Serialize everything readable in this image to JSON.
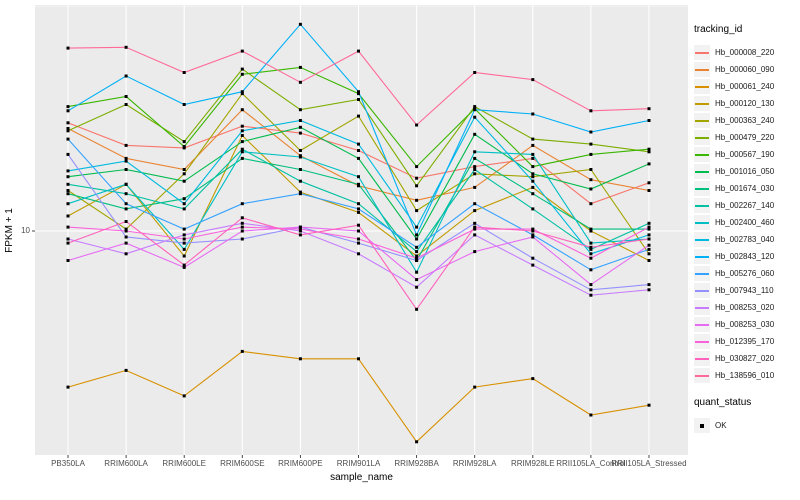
{
  "figure": {
    "y_axis": {
      "title": "FPKM + 1",
      "tick_label": "10"
    },
    "x_axis": {
      "title": "sample_name"
    },
    "legend": {
      "tracking_title": "tracking_id",
      "quant_title": "quant_status",
      "quant_items": [
        {
          "label": "OK",
          "marker": "black-square"
        }
      ]
    },
    "colors": {
      "panel_bg": "#EBEBEB",
      "grid": "#FFFFFF",
      "point": "#000000",
      "axis_text": "#4d4d4d"
    }
  },
  "chart_data": {
    "type": "line",
    "title": "",
    "xlabel": "sample_name",
    "ylabel": "FPKM + 1",
    "y_scale": "log10",
    "ylim": [
      3.1,
      32
    ],
    "y_major_breaks": [
      10
    ],
    "y_minor_breaks": [
      31.6
    ],
    "grid": true,
    "legend_position": "right",
    "point_marker": {
      "shape": "square",
      "color": "#000000",
      "status_label": "OK"
    },
    "categories": [
      "PB350LA",
      "RRIM600LA",
      "RRIM600LE",
      "RRIM600SE",
      "RRIM600PE",
      "RRIM901LA",
      "RRIM928BA",
      "RRIM928LA",
      "RRIM928LE",
      "RRII105LA_Control",
      "RRII105LA_Stressed"
    ],
    "series": [
      {
        "name": "Hb_000008_220",
        "color": "#F8766D",
        "values": [
          17.4,
          15.5,
          15.3,
          17.1,
          16.5,
          15.1,
          13.1,
          13.9,
          14.5,
          11.5,
          12.8
        ]
      },
      {
        "name": "Hb_000060_090",
        "color": "#EA8331",
        "values": [
          16.9,
          14.5,
          13.7,
          18.6,
          14.7,
          12.6,
          11.7,
          12.5,
          15.5,
          13.0,
          12.3
        ]
      },
      {
        "name": "Hb_000061_240",
        "color": "#D89000",
        "values": [
          4.5,
          4.9,
          4.3,
          5.4,
          5.2,
          5.2,
          3.4,
          4.5,
          4.7,
          3.9,
          4.1
        ]
      },
      {
        "name": "Hb_000120_130",
        "color": "#C09B00",
        "values": [
          10.8,
          12.7,
          8.8,
          16.3,
          12.2,
          11.0,
          8.8,
          11.1,
          12.5,
          10.0,
          8.6
        ]
      },
      {
        "name": "Hb_000363_240",
        "color": "#A3A500",
        "values": [
          12.3,
          10.1,
          13.4,
          20.2,
          15.1,
          18.0,
          11.1,
          13.4,
          13.2,
          13.7,
          8.9
        ]
      },
      {
        "name": "Hb_000479_220",
        "color": "#7CAE00",
        "values": [
          16.7,
          19.1,
          15.8,
          22.9,
          18.6,
          19.6,
          12.6,
          18.9,
          16.0,
          15.6,
          15.0
        ]
      },
      {
        "name": "Hb_000567_190",
        "color": "#39B600",
        "values": [
          18.9,
          19.9,
          15.4,
          22.3,
          23.1,
          20.2,
          13.9,
          18.7,
          13.9,
          14.8,
          15.2
        ]
      },
      {
        "name": "Hb_001016_050",
        "color": "#00BB4E",
        "values": [
          13.2,
          13.7,
          12.9,
          15.8,
          17.0,
          14.5,
          9.6,
          16.4,
          13.4,
          12.4,
          14.1
        ]
      },
      {
        "name": "Hb_001674_030",
        "color": "#00BF7D",
        "values": [
          12.1,
          11.2,
          11.8,
          14.5,
          13.7,
          12.7,
          8.6,
          14.5,
          12.1,
          10.1,
          10.1
        ]
      },
      {
        "name": "Hb_002267_140",
        "color": "#00C1A3",
        "values": [
          12.7,
          12.1,
          11.2,
          15.2,
          12.9,
          11.5,
          9.0,
          13.7,
          11.2,
          9.1,
          10.4
        ]
      },
      {
        "name": "Hb_002400_460",
        "color": "#00BFC4",
        "values": [
          11.5,
          12.7,
          9.1,
          15.0,
          14.6,
          13.2,
          8.1,
          15.0,
          14.8,
          9.4,
          9.6
        ]
      },
      {
        "name": "Hb_002783_040",
        "color": "#00BAE0",
        "values": [
          13.6,
          14.3,
          11.5,
          16.7,
          17.6,
          15.6,
          10.2,
          17.9,
          12.9,
          8.9,
          9.8
        ]
      },
      {
        "name": "Hb_002843_120",
        "color": "#00B0F6",
        "values": [
          18.5,
          22.1,
          19.1,
          20.4,
          28.8,
          20.4,
          9.8,
          18.6,
          18.2,
          16.6,
          17.6
        ]
      },
      {
        "name": "Hb_005276_060",
        "color": "#35A2FF",
        "values": [
          16.0,
          11.5,
          10.1,
          11.5,
          12.1,
          11.2,
          9.2,
          11.5,
          9.8,
          8.2,
          9.1
        ]
      },
      {
        "name": "Hb_007943_110",
        "color": "#9590FF",
        "values": [
          14.8,
          9.7,
          9.4,
          9.6,
          10.2,
          9.4,
          8.6,
          10.4,
          8.7,
          7.4,
          7.6
        ]
      },
      {
        "name": "Hb_008253_020",
        "color": "#C77CFF",
        "values": [
          9.6,
          8.9,
          9.8,
          10.4,
          10.0,
          8.9,
          7.5,
          9.8,
          8.4,
          7.2,
          7.4
        ]
      },
      {
        "name": "Hb_008253_030",
        "color": "#E76BF3",
        "values": [
          8.6,
          9.4,
          8.3,
          10.0,
          10.2,
          10.0,
          7.8,
          9.0,
          9.7,
          7.6,
          9.3
        ]
      },
      {
        "name": "Hb_012395_170",
        "color": "#FA62DB",
        "values": [
          10.2,
          10.0,
          9.6,
          10.2,
          10.1,
          9.6,
          8.7,
          10.1,
          10.1,
          8.7,
          10.2
        ]
      },
      {
        "name": "Hb_030827_020",
        "color": "#FF62BC",
        "values": [
          9.4,
          10.5,
          8.4,
          10.7,
          9.8,
          10.3,
          6.7,
          10.2,
          10.0,
          9.2,
          9.6
        ]
      },
      {
        "name": "Hb_138596_010",
        "color": "#FF6A98",
        "values": [
          25.5,
          25.6,
          22.5,
          25.1,
          21.4,
          25.1,
          17.2,
          22.5,
          21.7,
          18.5,
          18.7
        ]
      }
    ]
  }
}
